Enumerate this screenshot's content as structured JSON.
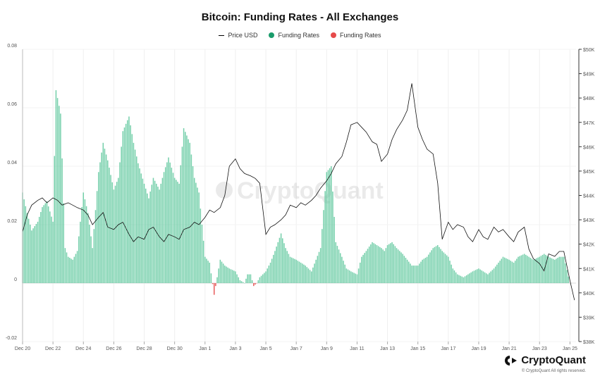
{
  "chart_data": {
    "type": "bar+line",
    "title": "Bitcoin: Funding Rates - All Exchanges",
    "legend": [
      {
        "name": "Price USD",
        "kind": "line",
        "color": "#000000"
      },
      {
        "name": "Funding Rates",
        "kind": "dot",
        "color": "#1a9c6b"
      },
      {
        "name": "Funding Rates",
        "kind": "dot",
        "color": "#e64a4a"
      }
    ],
    "x_ticks": [
      "Dec 20",
      "Dec 22",
      "Dec 24",
      "Dec 26",
      "Dec 28",
      "Dec 30",
      "Jan 1",
      "Jan 3",
      "Jan 5",
      "Jan 7",
      "Jan 9",
      "Jan 11",
      "Jan 13",
      "Jan 15",
      "Jan 17",
      "Jan 19",
      "Jan 21",
      "Jan 23",
      "Jan 25"
    ],
    "x_range_days": [
      0,
      36.4
    ],
    "y_left": {
      "ticks": [
        "0.08",
        "0.06",
        "0.04",
        "0.02",
        "0",
        "-0.02"
      ],
      "tick_values": [
        0.08,
        0.06,
        0.04,
        0.02,
        0,
        -0.02
      ],
      "lim": [
        -0.02,
        0.08
      ]
    },
    "y_right": {
      "ticks": [
        "$50K",
        "$49K",
        "$48K",
        "$47K",
        "$46K",
        "$45K",
        "$44K",
        "$43K",
        "$42K",
        "$41K",
        "$40K",
        "$39K",
        "$38K"
      ],
      "tick_values": [
        50000,
        49000,
        48000,
        47000,
        46000,
        45000,
        44000,
        43000,
        42000,
        41000,
        40000,
        39000,
        38000
      ],
      "lim": [
        38000,
        50000
      ]
    },
    "funding_rates": {
      "day": [
        0,
        0.3,
        0.6,
        1,
        1.3,
        1.6,
        2,
        2.2,
        2.5,
        2.8,
        3,
        3.3,
        3.6,
        4,
        4.3,
        4.6,
        5,
        5.3,
        5.6,
        6,
        6.3,
        6.6,
        7,
        7.3,
        7.6,
        8,
        8.3,
        8.6,
        9,
        9.3,
        9.6,
        10,
        10.3,
        10.6,
        11,
        11.3,
        11.6,
        12,
        12.3,
        12.6,
        13,
        13.3,
        13.6,
        14,
        14.3,
        14.6,
        14.8,
        15,
        15.2,
        15.4,
        15.6,
        16,
        16.3,
        16.6,
        17,
        17.3,
        17.6,
        18,
        18.3,
        18.6,
        19,
        19.3,
        19.6,
        20,
        20.3,
        20.6,
        21,
        21.3,
        21.6,
        22,
        22.3,
        22.6,
        23,
        23.3,
        23.6,
        23.8,
        24,
        24.3,
        24.6,
        25,
        25.3,
        25.6,
        26,
        26.3,
        26.6,
        27,
        27.3,
        27.6,
        28,
        28.3,
        28.6,
        29,
        29.3,
        29.6,
        30,
        30.3,
        30.6,
        31,
        31.3,
        31.6,
        32,
        32.3,
        32.6,
        33,
        33.3,
        33.6,
        34,
        34.3,
        34.6,
        35,
        35.3,
        35.6,
        36,
        36.3
      ],
      "value": [
        0.031,
        0.024,
        0.018,
        0.021,
        0.026,
        0.028,
        0.021,
        0.066,
        0.058,
        0.012,
        0.009,
        0.008,
        0.011,
        0.031,
        0.024,
        0.012,
        0.038,
        0.048,
        0.042,
        0.032,
        0.036,
        0.052,
        0.057,
        0.048,
        0.041,
        0.034,
        0.029,
        0.036,
        0.032,
        0.038,
        0.043,
        0.036,
        0.034,
        0.053,
        0.048,
        0.036,
        0.031,
        0.009,
        0.007,
        -0.004,
        0.008,
        0.006,
        0.005,
        0.004,
        0.001,
        0.0,
        0.003,
        0.003,
        -0.001,
        0.0,
        0.002,
        0.004,
        0.007,
        0.011,
        0.017,
        0.012,
        0.009,
        0.008,
        0.007,
        0.006,
        0.004,
        0.008,
        0.012,
        0.038,
        0.04,
        0.014,
        0.009,
        0.005,
        0.004,
        0.003,
        0.009,
        0.011,
        0.014,
        0.013,
        0.012,
        0.011,
        0.013,
        0.014,
        0.012,
        0.01,
        0.008,
        0.006,
        0.006,
        0.008,
        0.009,
        0.012,
        0.013,
        0.011,
        0.009,
        0.005,
        0.003,
        0.002,
        0.003,
        0.004,
        0.005,
        0.004,
        0.003,
        0.005,
        0.007,
        0.009,
        0.008,
        0.007,
        0.009,
        0.01,
        0.009,
        0.008,
        0.009,
        0.01,
        0.009,
        0.008,
        0.009,
        0.009,
        0.0
      ]
    },
    "price_usd": {
      "day": [
        0,
        0.3,
        0.6,
        1,
        1.3,
        1.6,
        2,
        2.3,
        2.6,
        3,
        3.3,
        3.6,
        4,
        4.3,
        4.6,
        5,
        5.3,
        5.6,
        6,
        6.3,
        6.6,
        7,
        7.3,
        7.6,
        8,
        8.3,
        8.6,
        9,
        9.3,
        9.6,
        10,
        10.3,
        10.6,
        11,
        11.3,
        11.6,
        12,
        12.3,
        12.6,
        13,
        13.3,
        13.6,
        14,
        14.3,
        14.6,
        15,
        15.3,
        15.6,
        16,
        16.3,
        16.6,
        17,
        17.3,
        17.6,
        18,
        18.3,
        18.6,
        19,
        19.3,
        19.6,
        20,
        20.3,
        20.6,
        21,
        21.3,
        21.6,
        22,
        22.3,
        22.6,
        23,
        23.3,
        23.6,
        24,
        24.3,
        24.6,
        25,
        25.3,
        25.6,
        26,
        26.3,
        26.6,
        27,
        27.3,
        27.6,
        28,
        28.3,
        28.6,
        29,
        29.3,
        29.6,
        30,
        30.3,
        30.6,
        31,
        31.3,
        31.6,
        32,
        32.3,
        32.6,
        33,
        33.3,
        33.6,
        34,
        34.3,
        34.6,
        35,
        35.3,
        35.6,
        36,
        36.3
      ],
      "value": [
        42500,
        43200,
        43600,
        43800,
        43900,
        43700,
        43900,
        43800,
        43600,
        43700,
        43600,
        43500,
        43400,
        43200,
        42800,
        43100,
        43300,
        42700,
        42600,
        42800,
        42900,
        42400,
        42100,
        42300,
        42200,
        42600,
        42700,
        42300,
        42100,
        42400,
        42300,
        42200,
        42600,
        42700,
        42900,
        42800,
        43100,
        43400,
        43300,
        43500,
        44000,
        45200,
        45500,
        45100,
        44900,
        44800,
        44700,
        44500,
        42400,
        42700,
        42800,
        43000,
        43200,
        43600,
        43500,
        43700,
        43600,
        43800,
        44000,
        44300,
        44600,
        44900,
        45300,
        45600,
        46200,
        46900,
        47000,
        46800,
        46600,
        46200,
        46100,
        45400,
        45700,
        46300,
        46700,
        47100,
        47500,
        48600,
        46800,
        46300,
        45900,
        45700,
        44500,
        42200,
        42900,
        42600,
        42800,
        42700,
        42300,
        42100,
        42600,
        42300,
        42200,
        42700,
        42500,
        42600,
        42300,
        42100,
        42500,
        42700,
        41800,
        41400,
        41200,
        40900,
        41600,
        41500,
        41700,
        41700,
        40500,
        39700,
        39600,
        39100,
        39300,
        39900,
        40000,
        39800,
        39900
      ]
    }
  },
  "brand": {
    "name": "CryptoQuant",
    "copyright": "© CryptoQuant All rights reserved."
  }
}
